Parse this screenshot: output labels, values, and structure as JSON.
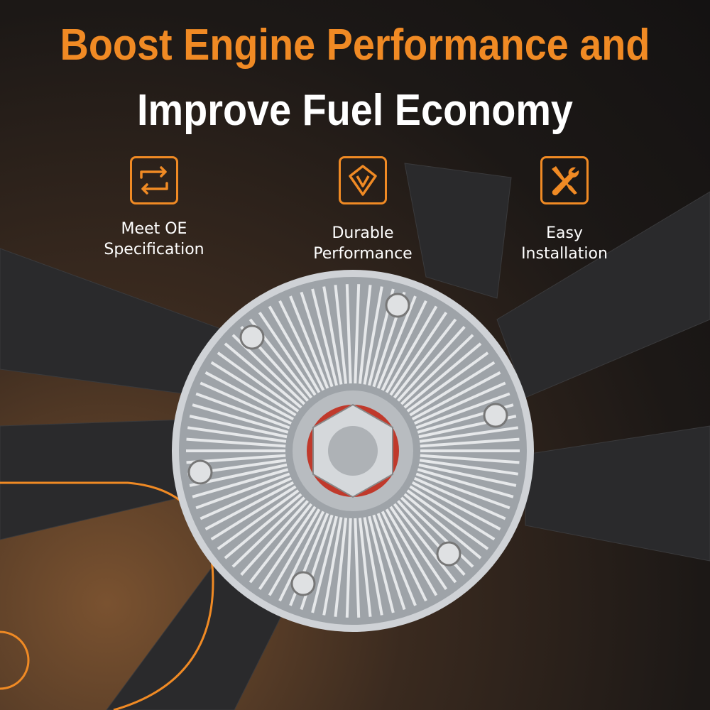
{
  "headline": {
    "line1": "Boost Engine Performance and",
    "line2": "Improve Fuel Economy"
  },
  "features": [
    {
      "icon": "arrows-exchange-icon",
      "line1": "Meet OE",
      "line2": "Specification"
    },
    {
      "icon": "diamond-icon",
      "line1": "Durable",
      "line2": "Performance"
    },
    {
      "icon": "wrench-screwdriver-icon",
      "line1": "Easy",
      "line2": "Installation"
    }
  ],
  "colors": {
    "accent": "#f08a24",
    "text": "#ffffff",
    "background": "#1c1816"
  }
}
